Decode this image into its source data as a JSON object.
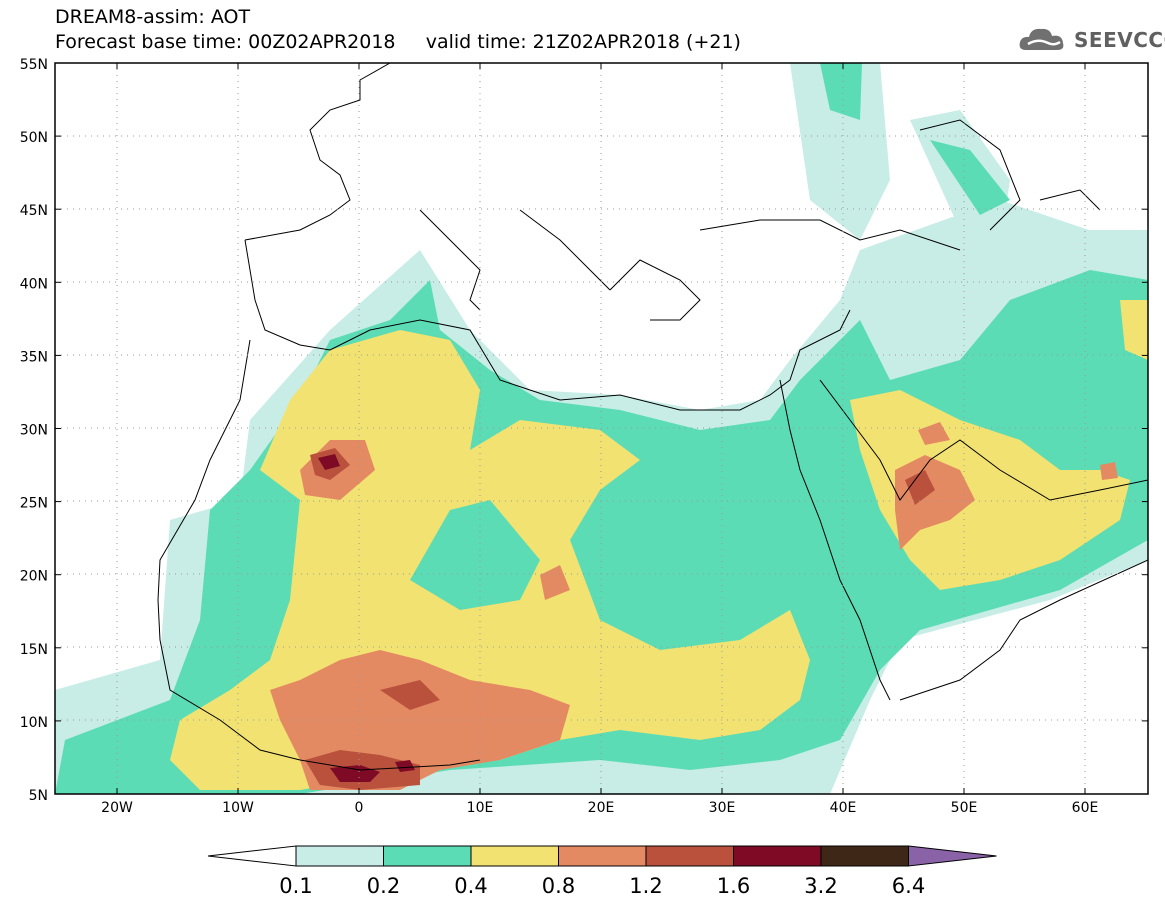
{
  "header": {
    "title": "DREAM8-assim: AOT",
    "base_time_label": "Forecast base time: 00Z02APR2018",
    "valid_time_label": "valid time: 21Z02APR2018 (+21)"
  },
  "logo": {
    "text": "SEEVCCC",
    "icon": "cloud-icon"
  },
  "map": {
    "lat_labels": [
      "55N",
      "50N",
      "45N",
      "40N",
      "35N",
      "30N",
      "25N",
      "20N",
      "15N",
      "10N",
      "5N"
    ],
    "lon_labels": [
      "20W",
      "10W",
      "0",
      "10E",
      "20E",
      "30E",
      "40E",
      "50E",
      "60E"
    ]
  },
  "colorbar": {
    "labels": [
      "0.1",
      "0.2",
      "0.4",
      "0.8",
      "1.2",
      "1.6",
      "3.2",
      "6.4"
    ],
    "colors": [
      "#ffffff",
      "#c7ede6",
      "#5cdcb4",
      "#f2e271",
      "#e48a63",
      "#b9513c",
      "#7f0a26",
      "#3f2718",
      "#8a62a8"
    ]
  }
}
